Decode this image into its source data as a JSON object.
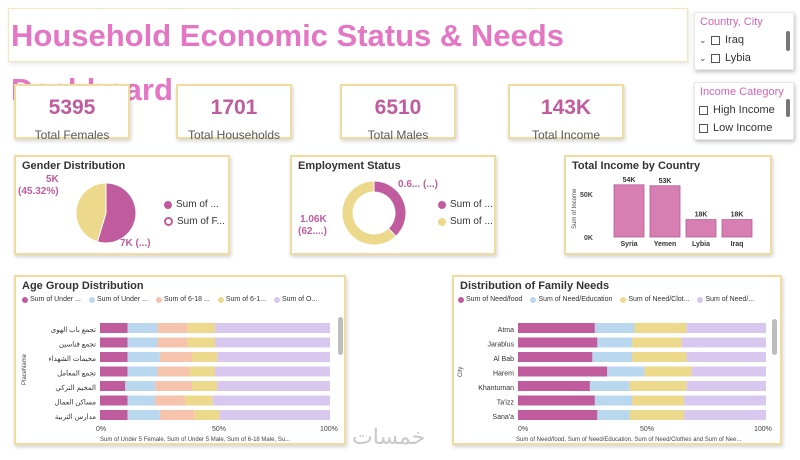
{
  "header": {
    "title": "Household Economic Status & Needs Dashboard"
  },
  "kpis": [
    {
      "value": "5395",
      "label": "Total Females"
    },
    {
      "value": "1701",
      "label": "Total Households"
    },
    {
      "value": "6510",
      "label": "Total Males"
    },
    {
      "value": "143K",
      "label": "Total Income"
    }
  ],
  "slicer_country": {
    "header": "Country, City",
    "items": [
      "Iraq",
      "Lybia"
    ]
  },
  "slicer_income": {
    "header": "Income Category",
    "items": [
      "High Income",
      "Low Income"
    ]
  },
  "colors": {
    "pink": "#c05c9d",
    "yellow": "#ecd98b",
    "blue": "#b9d8f0",
    "salmon": "#f6c3ad",
    "lavender": "#d8c8f0",
    "title_pink": "#e476c4"
  },
  "gender": {
    "title": "Gender Distribution",
    "label_top_1": "5K",
    "label_top_2": "(45.32%)",
    "label_bottom": "7K (...)",
    "legend": [
      "Sum of ...",
      "Sum of F..."
    ]
  },
  "employment": {
    "title": "Employment Status",
    "label_top": "0.6... (...)",
    "label_left_1": "1.06K",
    "label_left_2": "(62....)",
    "legend": [
      "Sum of ...",
      "Sum of ..."
    ]
  },
  "income_country": {
    "title": "Total Income by Country",
    "ylabel": "Sum of Income",
    "yticks": [
      "50K",
      "0K"
    ]
  },
  "age_group": {
    "title": "Age Group Distribution",
    "legend": [
      "Sum of Under ...",
      "Sum of Under ...",
      "Sum of 6-18 ...",
      "Sum of 6-1...",
      "Sum of O..."
    ],
    "ylabel": "PlaceName",
    "xticks": [
      "0%",
      "50%",
      "100%"
    ],
    "xlabel": "Sum of Under 5 Female, Sum of Under 5 Male, Sum of 6-18 Male, Su..."
  },
  "family_needs": {
    "title": "Distribution of Family Needs",
    "legend": [
      "Sum of Need/food",
      "Sum of Need/Education",
      "Sum of Need/Clot...",
      "Sum of Need/..."
    ],
    "ylabel": "City",
    "xticks": [
      "0%",
      "50%",
      "100%"
    ],
    "xlabel": "Sum of Need/food, Sum of Need/Education, Sum of Need/Clothes and Sum of Nee..."
  },
  "watermark": "خمسات",
  "chart_data": [
    {
      "type": "pie",
      "title": "Gender Distribution",
      "series": [
        {
          "name": "Sum of ...",
          "value": 45.32,
          "label": "5K (45.32%)"
        },
        {
          "name": "Sum of F...",
          "value": 54.68,
          "label": "7K (...)"
        }
      ]
    },
    {
      "type": "pie",
      "title": "Employment Status",
      "donut": true,
      "series": [
        {
          "name": "Sum of ...",
          "value": 38,
          "label": "0.6... (...)"
        },
        {
          "name": "Sum of ...",
          "value": 62,
          "label": "1.06K (62....)"
        }
      ]
    },
    {
      "type": "bar",
      "title": "Total Income by Country",
      "categories": [
        "Syria",
        "Yemen",
        "Lybia",
        "Iraq"
      ],
      "values": [
        54,
        53,
        18,
        18
      ],
      "value_labels": [
        "54K",
        "53K",
        "18K",
        "18K"
      ],
      "ylabel": "Sum of Income",
      "ylim": [
        0,
        60
      ]
    },
    {
      "type": "bar",
      "orientation": "horizontal-stacked-100",
      "title": "Age Group Distribution",
      "categories": [
        "تجمع باب الهوى",
        "تجمع قناسين",
        "مخيمات الشهداء",
        "تجمع المعامل",
        "المخيم التركي",
        "مساكن العمال",
        "مدارس التربية"
      ],
      "series": [
        {
          "name": "Sum of Under ...",
          "values": [
            12,
            12,
            12,
            12,
            11,
            12,
            12
          ]
        },
        {
          "name": "Sum of Under ...",
          "values": [
            13,
            13,
            14,
            13,
            13,
            12,
            14
          ]
        },
        {
          "name": "Sum of 6-18 ...",
          "values": [
            13,
            13,
            14,
            14,
            16,
            13,
            15
          ]
        },
        {
          "name": "Sum of 6-1...",
          "values": [
            12,
            12,
            11,
            11,
            11,
            12,
            11
          ]
        },
        {
          "name": "Sum of O...",
          "values": [
            50,
            50,
            49,
            50,
            49,
            51,
            48
          ]
        }
      ],
      "xlim": [
        0,
        100
      ]
    },
    {
      "type": "bar",
      "orientation": "horizontal-stacked-100",
      "title": "Distribution of Family Needs",
      "categories": [
        "Atma",
        "Jarablus",
        "Al Bab",
        "Harem",
        "Khantuman",
        "Ta'izz",
        "Sana'a"
      ],
      "series": [
        {
          "name": "Sum of Need/food",
          "values": [
            31,
            32,
            30,
            36,
            29,
            31,
            32
          ]
        },
        {
          "name": "Sum of Need/Education",
          "values": [
            16,
            14,
            16,
            15,
            16,
            15,
            13
          ]
        },
        {
          "name": "Sum of Need/Clot...",
          "values": [
            21,
            20,
            22,
            19,
            23,
            21,
            22
          ]
        },
        {
          "name": "Sum of Need/...",
          "values": [
            32,
            34,
            32,
            30,
            32,
            33,
            33
          ]
        }
      ],
      "xlim": [
        0,
        100
      ]
    }
  ]
}
